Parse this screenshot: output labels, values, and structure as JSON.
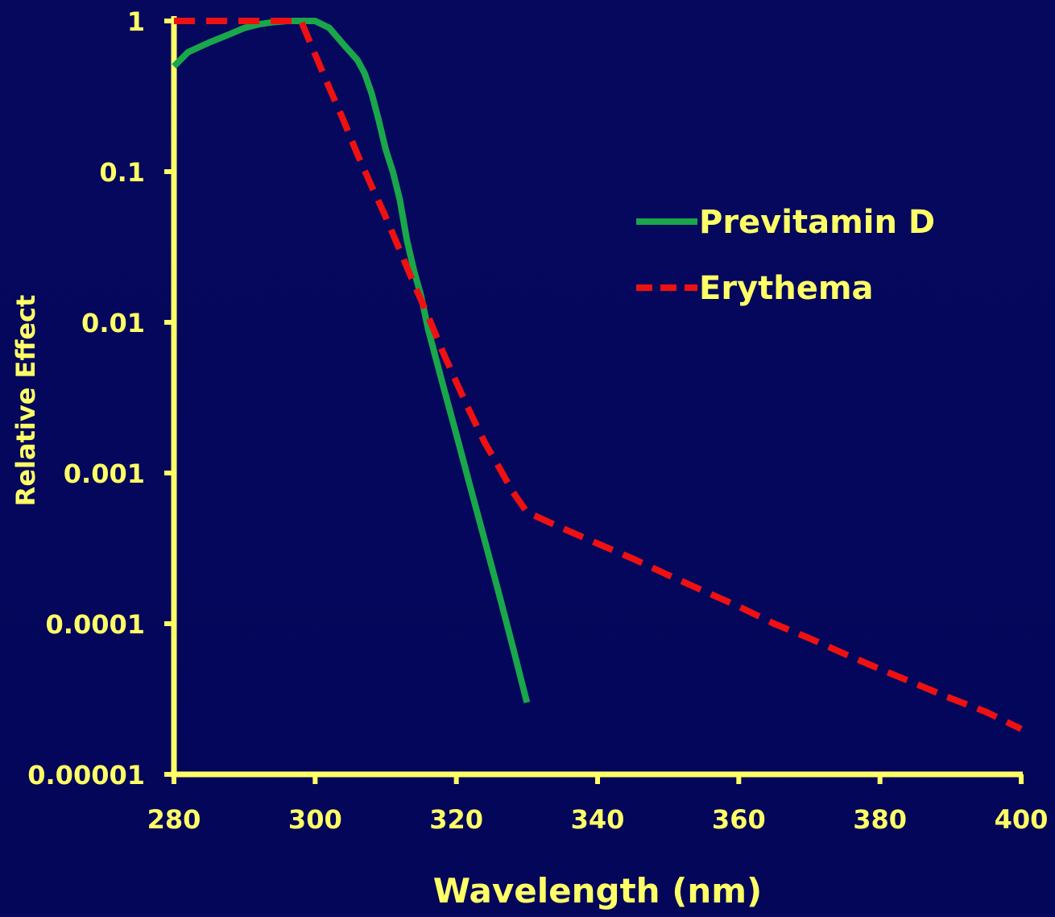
{
  "chart_data": {
    "type": "line",
    "title": "",
    "xlabel": "Wavelength (nm)",
    "ylabel": "Relative Effect",
    "xlim": [
      280,
      400
    ],
    "ylim": [
      1e-05,
      1
    ],
    "y_scale": "log",
    "x_ticks": [
      280,
      300,
      320,
      340,
      360,
      380,
      400
    ],
    "x_tick_labels": [
      "280",
      "300",
      "320",
      "340",
      "360",
      "380",
      "400"
    ],
    "y_ticks": [
      1e-05,
      0.0001,
      0.001,
      0.01,
      0.1,
      1
    ],
    "y_tick_labels": [
      "0.00001",
      "0.0001",
      "0.001",
      "0.01",
      "0.1",
      "1"
    ],
    "grid": false,
    "legend_position": "top-right",
    "colors": {
      "background": "#05075c",
      "axis": "#ffff66",
      "text": "#ffff66",
      "previtamin": "#1aa64a",
      "erythema": "#ee1111"
    },
    "series": [
      {
        "name": "Previtamin D",
        "style": "solid",
        "x": [
          280,
          282,
          285,
          288,
          290,
          292,
          294,
          296,
          298,
          300,
          302,
          304,
          306,
          307,
          308,
          309,
          310,
          311,
          312,
          313,
          314,
          315,
          316,
          318,
          320,
          322,
          324,
          326,
          328,
          330
        ],
        "y": [
          0.5,
          0.62,
          0.72,
          0.82,
          0.9,
          0.95,
          0.98,
          1.0,
          1.0,
          1.0,
          0.9,
          0.7,
          0.55,
          0.45,
          0.33,
          0.22,
          0.14,
          0.1,
          0.065,
          0.035,
          0.022,
          0.015,
          0.009,
          0.004,
          0.0018,
          0.0008,
          0.00036,
          0.00016,
          7e-05,
          3e-05
        ]
      },
      {
        "name": "Erythema",
        "style": "dashed",
        "x": [
          280,
          285,
          290,
          295,
          298,
          300,
          302,
          304,
          306,
          308,
          310,
          312,
          314,
          316,
          318,
          320,
          322,
          324,
          326,
          328,
          330,
          335,
          340,
          345,
          350,
          355,
          360,
          365,
          370,
          375,
          380,
          385,
          390,
          395,
          400
        ],
        "y": [
          1.0,
          1.0,
          1.0,
          1.0,
          1.0,
          0.6,
          0.36,
          0.22,
          0.13,
          0.08,
          0.05,
          0.03,
          0.018,
          0.011,
          0.0065,
          0.004,
          0.0025,
          0.0016,
          0.0011,
          0.00075,
          0.00055,
          0.00043,
          0.00034,
          0.00027,
          0.00021,
          0.000165,
          0.00013,
          0.0001,
          8e-05,
          6.3e-05,
          5e-05,
          4e-05,
          3.2e-05,
          2.6e-05,
          2e-05
        ]
      }
    ]
  }
}
